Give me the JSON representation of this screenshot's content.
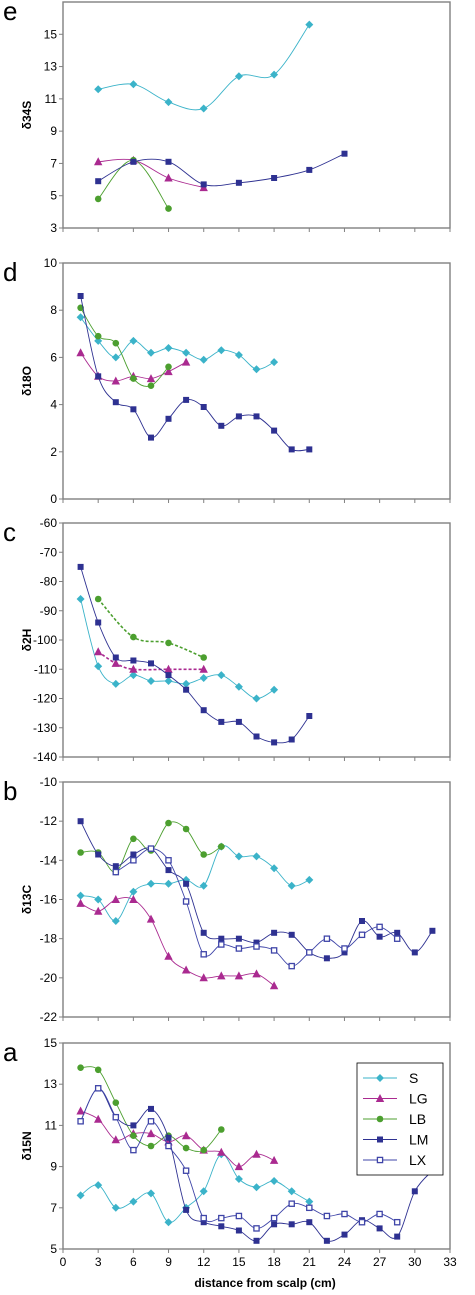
{
  "colors": {
    "S": "#3BB3C9",
    "LG": "#AA2A90",
    "LB": "#4C9F2F",
    "LM": "#2E3191",
    "LX": "#3F45A8",
    "frame": "#808080",
    "text": "#000000"
  },
  "x_axis": {
    "title": "distance from scalp (cm)",
    "ticks": [
      0,
      3,
      6,
      9,
      12,
      15,
      18,
      21,
      24,
      27,
      30,
      33
    ],
    "xlim": [
      0,
      33
    ]
  },
  "chart_data": [
    {
      "panel": "e",
      "type": "line",
      "ylabel": "δ34S",
      "ylim": [
        3,
        17
      ],
      "yticks": [
        3,
        5,
        7,
        9,
        11,
        13,
        15
      ],
      "series": [
        {
          "name": "S",
          "x": [
            3,
            6,
            9,
            12,
            15,
            18,
            21
          ],
          "y": [
            11.6,
            11.9,
            10.8,
            10.4,
            12.4,
            12.5,
            15.6
          ]
        },
        {
          "name": "LG",
          "x": [
            3,
            6,
            9,
            12
          ],
          "y": [
            7.1,
            7.2,
            6.1,
            5.5
          ]
        },
        {
          "name": "LB",
          "x": [
            3,
            6,
            9
          ],
          "y": [
            4.8,
            7.2,
            4.2
          ]
        },
        {
          "name": "LM",
          "x": [
            3,
            6,
            9,
            12,
            15,
            18,
            21,
            24
          ],
          "y": [
            5.9,
            7.1,
            7.1,
            5.7,
            5.8,
            6.1,
            6.6,
            7.6
          ]
        }
      ]
    },
    {
      "panel": "d",
      "type": "line",
      "ylabel": "δ18O",
      "ylim": [
        0,
        10
      ],
      "yticks": [
        0,
        2,
        4,
        6,
        8,
        10
      ],
      "series": [
        {
          "name": "S",
          "x": [
            1.5,
            3,
            4.5,
            6,
            7.5,
            9,
            10.5,
            12,
            13.5,
            15,
            16.5,
            18
          ],
          "y": [
            7.7,
            6.7,
            6.0,
            6.7,
            6.2,
            6.4,
            6.2,
            5.9,
            6.3,
            6.1,
            5.5,
            5.8
          ]
        },
        {
          "name": "LG",
          "x": [
            1.5,
            3,
            4.5,
            6,
            7.5,
            9,
            10.5
          ],
          "y": [
            6.2,
            5.2,
            5.0,
            5.2,
            5.1,
            5.4,
            5.8
          ]
        },
        {
          "name": "LB",
          "x": [
            1.5,
            3,
            4.5,
            6,
            7.5,
            9
          ],
          "y": [
            8.1,
            6.9,
            6.6,
            5.1,
            4.8,
            5.6
          ]
        },
        {
          "name": "LM",
          "x": [
            1.5,
            3,
            4.5,
            6,
            7.5,
            9,
            10.5,
            12,
            13.5,
            15,
            16.5,
            18,
            19.5,
            21
          ],
          "y": [
            8.6,
            5.2,
            4.1,
            3.8,
            2.6,
            3.4,
            4.2,
            3.9,
            3.1,
            3.5,
            3.5,
            2.9,
            2.1,
            2.1
          ]
        }
      ]
    },
    {
      "panel": "c",
      "type": "line",
      "ylabel": "δ2H",
      "ylim": [
        -140,
        -60
      ],
      "yticks": [
        -140,
        -130,
        -120,
        -110,
        -100,
        -90,
        -80,
        -70,
        -60
      ],
      "series": [
        {
          "name": "S",
          "x": [
            1.5,
            3,
            4.5,
            6,
            7.5,
            9,
            10.5,
            12,
            13.5,
            15,
            16.5,
            18
          ],
          "y": [
            -86,
            -109,
            -115,
            -112,
            -114,
            -114,
            -115,
            -113,
            -112,
            -116,
            -120,
            -117
          ]
        },
        {
          "name": "LG",
          "x": [
            3,
            4.5,
            6,
            9,
            12
          ],
          "y": [
            -104,
            -108,
            -110,
            -110,
            -110
          ],
          "dashed": true
        },
        {
          "name": "LB",
          "x": [
            3,
            6,
            9,
            12
          ],
          "y": [
            -86,
            -99,
            -101,
            -106
          ],
          "dashed": true
        },
        {
          "name": "LM",
          "x": [
            1.5,
            3,
            4.5,
            6,
            7.5,
            9,
            10.5,
            12,
            13.5,
            15,
            16.5,
            18,
            19.5,
            21
          ],
          "y": [
            -75,
            -94,
            -106,
            -107,
            -108,
            -112,
            -117,
            -124,
            -128,
            -128,
            -133,
            -135,
            -134,
            -126
          ]
        }
      ]
    },
    {
      "panel": "b",
      "type": "line",
      "ylabel": "δ13C",
      "ylim": [
        -22,
        -10
      ],
      "yticks": [
        -22,
        -20,
        -18,
        -16,
        -14,
        -12,
        -10
      ],
      "series": [
        {
          "name": "S",
          "x": [
            1.5,
            3,
            4.5,
            6,
            7.5,
            9,
            10.5,
            12,
            13.5,
            15,
            16.5,
            18,
            19.5,
            21
          ],
          "y": [
            -15.8,
            -16.0,
            -17.1,
            -15.6,
            -15.2,
            -15.2,
            -15.0,
            -15.3,
            -13.3,
            -13.8,
            -13.8,
            -14.4,
            -15.3,
            -15.0
          ]
        },
        {
          "name": "LG",
          "x": [
            1.5,
            3,
            4.5,
            6,
            7.5,
            9,
            10.5,
            12,
            13.5,
            15,
            16.5,
            18
          ],
          "y": [
            -16.2,
            -16.6,
            -16.0,
            -16.0,
            -17.0,
            -18.9,
            -19.6,
            -20.0,
            -19.9,
            -19.9,
            -19.8,
            -20.4
          ]
        },
        {
          "name": "LB",
          "x": [
            1.5,
            3,
            4.5,
            6,
            7.5,
            9,
            10.5,
            12,
            13.5
          ],
          "y": [
            -13.6,
            -13.6,
            -14.6,
            -12.9,
            -13.5,
            -12.1,
            -12.4,
            -13.7,
            -13.3
          ]
        },
        {
          "name": "LM",
          "x": [
            1.5,
            3,
            4.5,
            6,
            7.5,
            9,
            10.5,
            12,
            13.5,
            15,
            16.5,
            18,
            19.5,
            21,
            22.5,
            24,
            25.5,
            27,
            28.5,
            30,
            31.5
          ],
          "y": [
            -12.0,
            -13.7,
            -14.3,
            -13.7,
            -13.4,
            -14.5,
            -15.2,
            -17.7,
            -18.0,
            -18.0,
            -18.2,
            -17.7,
            -17.8,
            -18.7,
            -19.0,
            -18.7,
            -17.1,
            -17.9,
            -17.7,
            -18.7,
            -17.6
          ]
        },
        {
          "name": "LX",
          "x": [
            4.5,
            6,
            7.5,
            9,
            10.5,
            12,
            13.5,
            15,
            16.5,
            18,
            19.5,
            21,
            22.5,
            24,
            25.5,
            27,
            28.5
          ],
          "y": [
            -14.6,
            -14.0,
            -13.4,
            -14.0,
            -16.1,
            -18.8,
            -18.3,
            -18.5,
            -18.4,
            -18.6,
            -19.4,
            -18.7,
            -18.0,
            -18.5,
            -17.8,
            -17.4,
            -18.0
          ]
        }
      ]
    },
    {
      "panel": "a",
      "type": "line",
      "ylabel": "δ15N",
      "ylim": [
        5,
        15
      ],
      "yticks": [
        5,
        7,
        9,
        11,
        13,
        15
      ],
      "legend": {
        "placement": "top-right",
        "entries": [
          "S",
          "LG",
          "LB",
          "LM",
          "LX"
        ]
      },
      "series": [
        {
          "name": "S",
          "x": [
            1.5,
            3,
            4.5,
            6,
            7.5,
            9,
            10.5,
            12,
            13.5,
            15,
            16.5,
            18,
            19.5,
            21
          ],
          "y": [
            7.6,
            8.1,
            7.0,
            7.3,
            7.7,
            6.3,
            7.0,
            7.8,
            9.6,
            8.4,
            8.0,
            8.3,
            7.8,
            7.3
          ]
        },
        {
          "name": "LG",
          "x": [
            1.5,
            3,
            4.5,
            6,
            7.5,
            9,
            10.5,
            12,
            13.5,
            15,
            16.5,
            18
          ],
          "y": [
            11.7,
            11.3,
            10.3,
            10.6,
            10.6,
            10.2,
            10.5,
            9.8,
            9.7,
            9.0,
            9.6,
            9.3
          ]
        },
        {
          "name": "LB",
          "x": [
            1.5,
            3,
            4.5,
            6,
            7.5,
            9,
            10.5,
            12,
            13.5
          ],
          "y": [
            13.8,
            13.7,
            12.1,
            10.5,
            10.0,
            10.5,
            9.9,
            9.8,
            10.8
          ]
        },
        {
          "name": "LM",
          "x": [
            1.5,
            3,
            4.5,
            6,
            7.5,
            9,
            10.5,
            12,
            13.5,
            15,
            16.5,
            18,
            19.5,
            21,
            22.5,
            24,
            25.5,
            27,
            28.5,
            30,
            31.5
          ],
          "y": [
            11.2,
            12.8,
            11.4,
            11.0,
            11.8,
            10.4,
            6.9,
            6.3,
            6.1,
            5.9,
            5.4,
            6.2,
            6.2,
            6.3,
            5.4,
            5.7,
            6.4,
            6.0,
            5.6,
            7.8,
            8.8
          ]
        },
        {
          "name": "LX",
          "x": [
            1.5,
            3,
            4.5,
            6,
            7.5,
            9,
            10.5,
            12,
            13.5,
            15,
            16.5,
            18,
            19.5,
            21,
            22.5,
            24,
            25.5,
            27,
            28.5
          ],
          "y": [
            11.2,
            12.8,
            11.4,
            9.8,
            11.2,
            10.0,
            8.8,
            6.5,
            6.5,
            6.6,
            6.0,
            6.5,
            7.2,
            7.0,
            6.6,
            6.7,
            6.3,
            6.7,
            6.3
          ]
        }
      ]
    }
  ]
}
